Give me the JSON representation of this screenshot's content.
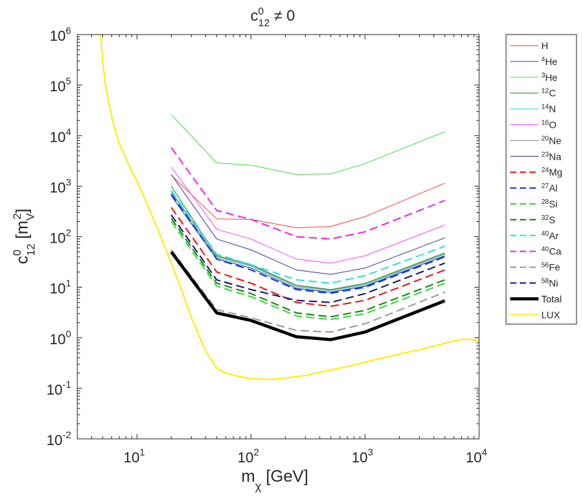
{
  "chart_data": {
    "type": "line",
    "title": {
      "base": "c",
      "sup": "0",
      "sub": "12",
      "rest": " ≠ 0"
    },
    "xlabel": {
      "base": "m",
      "sub": "χ",
      "rest": " [GeV]"
    },
    "ylabel": {
      "base": "c",
      "sup": "0",
      "sub": "12",
      "rest": " [m",
      "rest_sub": "V",
      "rest_sup": "2",
      "close": "]"
    },
    "xscale": "log",
    "yscale": "log",
    "xlim": [
      3,
      10000
    ],
    "ylim": [
      0.01,
      1000000
    ],
    "x_ticks": [
      {
        "value": 10,
        "base": "10",
        "exp": "1"
      },
      {
        "value": 100,
        "base": "10",
        "exp": "2"
      },
      {
        "value": 1000,
        "base": "10",
        "exp": "3"
      },
      {
        "value": 10000,
        "base": "10",
        "exp": "4"
      }
    ],
    "y_ticks": [
      {
        "value": 0.01,
        "base": "10",
        "exp": "-2"
      },
      {
        "value": 0.1,
        "base": "10",
        "exp": "-1"
      },
      {
        "value": 1,
        "base": "10",
        "exp": "0"
      },
      {
        "value": 10,
        "base": "10",
        "exp": "1"
      },
      {
        "value": 100,
        "base": "10",
        "exp": "2"
      },
      {
        "value": 1000,
        "base": "10",
        "exp": "3"
      },
      {
        "value": 10000,
        "base": "10",
        "exp": "4"
      },
      {
        "value": 100000,
        "base": "10",
        "exp": "5"
      },
      {
        "value": 1000000,
        "base": "10",
        "exp": "6"
      }
    ],
    "legend_position": "outside-right",
    "x": [
      20,
      50,
      100,
      250,
      500,
      1000,
      5000
    ],
    "series": [
      {
        "name": "H",
        "sup": "",
        "label": "H",
        "color": "#ff3b3b",
        "style": "solid",
        "width": 1,
        "values": [
          1650,
          225,
          220,
          150,
          160,
          250,
          1150
        ]
      },
      {
        "name": "He-4",
        "sup": "4",
        "label": "He",
        "color": "#3c3c9c",
        "style": "solid",
        "width": 1,
        "values": [
          1700,
          90,
          55,
          22,
          18,
          24,
          95
        ]
      },
      {
        "name": "He-3",
        "sup": "3",
        "label": "He",
        "color": "#44dd44",
        "style": "solid",
        "width": 1,
        "values": [
          26000,
          2900,
          2600,
          1700,
          1750,
          2800,
          12000
        ]
      },
      {
        "name": "C-12",
        "sup": "12",
        "label": "C",
        "color": "#1a8a1a",
        "style": "solid",
        "width": 1,
        "values": [
          1000,
          42,
          28,
          11,
          9,
          12,
          48
        ]
      },
      {
        "name": "N-14",
        "sup": "14",
        "label": "N",
        "color": "#33dddd",
        "style": "solid",
        "width": 1,
        "values": [
          750,
          38,
          26,
          10,
          8.5,
          11,
          45
        ]
      },
      {
        "name": "O-16",
        "sup": "16",
        "label": "O",
        "color": "#ff44ff",
        "style": "solid",
        "width": 1,
        "values": [
          2400,
          140,
          90,
          36,
          30,
          42,
          170
        ]
      },
      {
        "name": "Ne-20",
        "sup": "20",
        "label": "Ne",
        "color": "#888888",
        "style": "solid",
        "width": 1,
        "values": [
          800,
          40,
          27,
          10.5,
          8.8,
          11.5,
          46
        ]
      },
      {
        "name": "Na-23",
        "sup": "23",
        "label": "Na",
        "color": "#2b2b80",
        "style": "solid",
        "width": 1,
        "values": [
          650,
          36,
          24,
          9.5,
          8,
          10.5,
          42
        ]
      },
      {
        "name": "Mg-24",
        "sup": "24",
        "label": "Mg",
        "color": "#ee1111",
        "style": "dashed",
        "width": 2,
        "values": [
          380,
          20,
          12,
          5,
          4.2,
          5.5,
          22
        ]
      },
      {
        "name": "Al-27",
        "sup": "27",
        "label": "Al",
        "color": "#1133ee",
        "style": "dashed",
        "width": 2,
        "values": [
          700,
          36,
          22,
          9,
          7.6,
          10,
          40
        ]
      },
      {
        "name": "Si-28",
        "sup": "28",
        "label": "Si",
        "color": "#33dd33",
        "style": "dashed",
        "width": 2,
        "values": [
          200,
          10.5,
          6.5,
          2.7,
          2.3,
          3,
          12
        ]
      },
      {
        "name": "S-32",
        "sup": "32",
        "label": "S",
        "color": "#118811",
        "style": "dashed",
        "width": 2,
        "values": [
          230,
          12,
          7.5,
          3.1,
          2.6,
          3.5,
          14
        ]
      },
      {
        "name": "Ar-40",
        "sup": "40",
        "label": "Ar",
        "color": "#33dddd",
        "style": "dashed",
        "width": 2,
        "values": [
          820,
          45,
          28,
          14,
          12,
          17,
          65
        ]
      },
      {
        "name": "Ca-40",
        "sup": "40",
        "label": "Ca",
        "color": "#ee22ee",
        "style": "dashed",
        "width": 2,
        "values": [
          5800,
          330,
          220,
          100,
          90,
          125,
          520
        ]
      },
      {
        "name": "Fe-56",
        "sup": "56",
        "label": "Fe",
        "color": "#999999",
        "style": "dashed",
        "width": 2,
        "values": [
          55,
          3.6,
          2.5,
          1.4,
          1.3,
          1.9,
          8
        ]
      },
      {
        "name": "Ni-58",
        "sup": "58",
        "label": "Ni",
        "color": "#141470",
        "style": "dashed",
        "width": 2,
        "values": [
          270,
          14,
          9,
          5.5,
          5,
          7.5,
          30
        ]
      },
      {
        "name": "Total",
        "sup": "",
        "label": "Total",
        "color": "#000000",
        "style": "solid",
        "width": 4.5,
        "values": [
          50,
          3.1,
          2.2,
          1.05,
          0.92,
          1.3,
          5.4
        ]
      }
    ],
    "lux": {
      "name": "LUX",
      "label": "LUX",
      "color": "#ffee00",
      "x": [
        4.8,
        5.0,
        5.3,
        5.7,
        6.3,
        7,
        8,
        9,
        10,
        12,
        15,
        20,
        25,
        30,
        40,
        50,
        60,
        80,
        100,
        150,
        200,
        300,
        500,
        700,
        1000,
        2000,
        3000,
        4000,
        5000,
        6000,
        7000,
        8000,
        10000
      ],
      "values": [
        1000000,
        300000,
        100000,
        40000,
        15000,
        7000,
        3500,
        2000,
        1250,
        500,
        150,
        30,
        8,
        2.5,
        0.55,
        0.25,
        0.2,
        0.17,
        0.155,
        0.15,
        0.16,
        0.18,
        0.23,
        0.27,
        0.33,
        0.48,
        0.58,
        0.68,
        0.78,
        0.86,
        0.92,
        0.94,
        0.88
      ]
    }
  }
}
